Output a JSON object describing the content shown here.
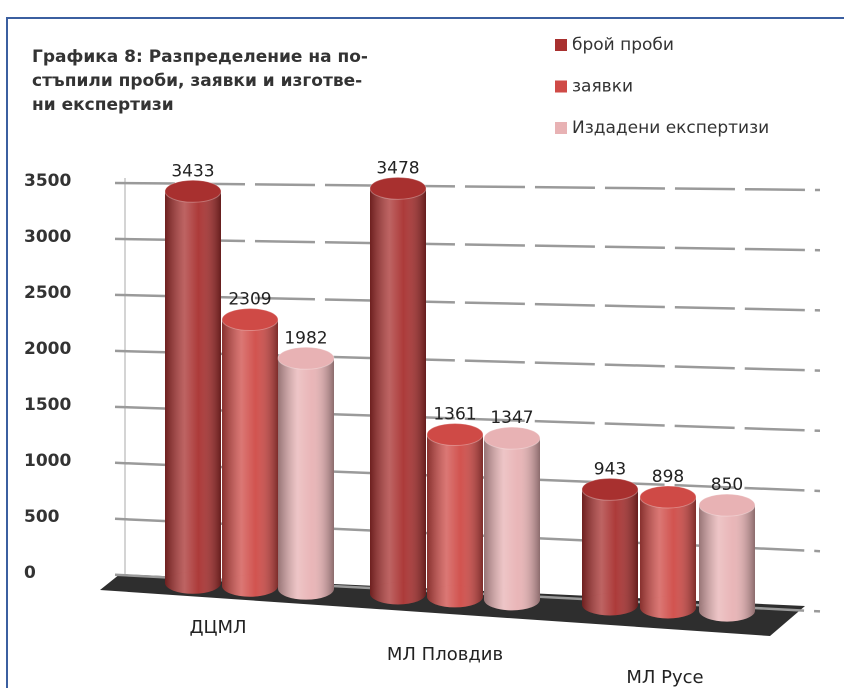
{
  "chart_data": {
    "type": "bar",
    "title_lines": [
      "Графика 8: Разпределение на по-",
      "стъпили проби, заявки и изготве-",
      "ни експертизи"
    ],
    "categories": [
      "ДЦМЛ",
      "МЛ Пловдив",
      "МЛ Русе"
    ],
    "series": [
      {
        "name": "брой проби",
        "color": "#a8302f",
        "values": [
          3433,
          3478,
          943
        ]
      },
      {
        "name": "заявки",
        "color": "#cf4a46",
        "values": [
          2309,
          1361,
          898
        ]
      },
      {
        "name": "Издадени експертизи",
        "color": "#e8b2b4",
        "values": [
          1982,
          1347,
          850
        ]
      }
    ],
    "ylim": [
      0,
      3500
    ],
    "yticks": [
      0,
      500,
      1000,
      1500,
      2000,
      2500,
      3000,
      3500
    ],
    "grid": true,
    "legend": "top-right"
  }
}
